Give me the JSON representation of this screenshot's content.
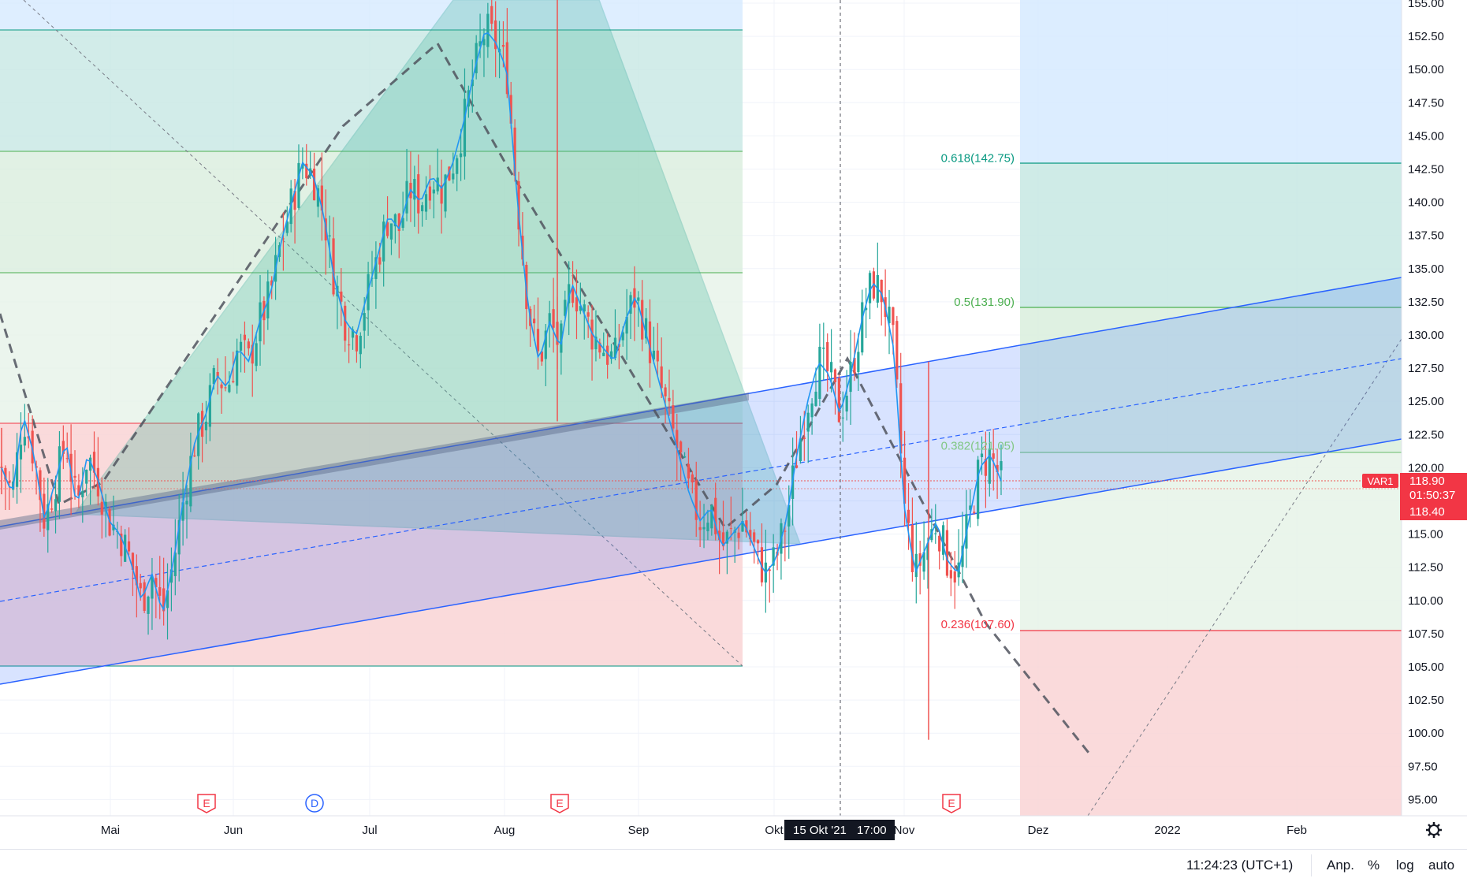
{
  "chart_data": {
    "type": "candlestick",
    "y_axis": {
      "min": 95.0,
      "max": 155.0,
      "ticks": [
        "155.00",
        "152.50",
        "150.00",
        "147.50",
        "145.00",
        "142.50",
        "140.00",
        "137.50",
        "135.00",
        "132.50",
        "130.00",
        "127.50",
        "125.00",
        "122.50",
        "120.00",
        "117.50",
        "115.00",
        "112.50",
        "110.00",
        "107.50",
        "105.00",
        "102.50",
        "100.00",
        "97.50",
        "95.00"
      ]
    },
    "x_axis": {
      "ticks": [
        "Mai",
        "Jun",
        "Jul",
        "Aug",
        "Sep",
        "Okt",
        "Nov",
        "Dez",
        "2022",
        "Feb"
      ]
    },
    "crosshair_label": {
      "date": "15 Okt '21",
      "time": "17:00"
    },
    "symbol_label": "VAR1",
    "price_labels": {
      "last": "118.90",
      "countdown": "01:50:37",
      "other": "118.40"
    },
    "fib_levels": [
      {
        "label": "0.618(142.75)",
        "value": 142.75,
        "color": "#089981"
      },
      {
        "label": "0.5(131.90)",
        "value": 131.9,
        "color": "#4caf50"
      },
      {
        "label": "0.382(121.05)",
        "value": 121.05,
        "color": "#81c784"
      },
      {
        "label": "0.236(107.60)",
        "value": 107.6,
        "color": "#f23645"
      }
    ],
    "event_markers": [
      {
        "label": "E",
        "type": "earnings"
      },
      {
        "label": "D",
        "type": "dividend"
      },
      {
        "label": "E",
        "type": "earnings"
      },
      {
        "label": "E",
        "type": "earnings"
      }
    ],
    "price_path": [
      120,
      118,
      124,
      121,
      116,
      119,
      122,
      117,
      121,
      119,
      116,
      115,
      113,
      110,
      112,
      109,
      113,
      118,
      122,
      124,
      127,
      126,
      129,
      128,
      131,
      133,
      137,
      140,
      143,
      142,
      139,
      134,
      131,
      130,
      133,
      136,
      139,
      138,
      141,
      140,
      142,
      141,
      143,
      146,
      150,
      153,
      152,
      150,
      140,
      132,
      128,
      131,
      129,
      134,
      132,
      130,
      129,
      128,
      131,
      133,
      130,
      127,
      124,
      121,
      118,
      116,
      117,
      114,
      115,
      116,
      114,
      112,
      113,
      116,
      121,
      125,
      128,
      127,
      124,
      127,
      131,
      134,
      133,
      129,
      117,
      112,
      114,
      116,
      113,
      112,
      116,
      120,
      121,
      119
    ]
  },
  "ui": {
    "time": "11:24:23 (UTC+1)",
    "adjust_label": "Anp.",
    "percent_label": "%",
    "log_label": "log",
    "auto_label": "auto"
  },
  "colors": {
    "bull": "#26a69a",
    "bear": "#ef5350",
    "ma": "#2196f3",
    "channel": "#2962ff",
    "grid": "#f0f3fa"
  }
}
